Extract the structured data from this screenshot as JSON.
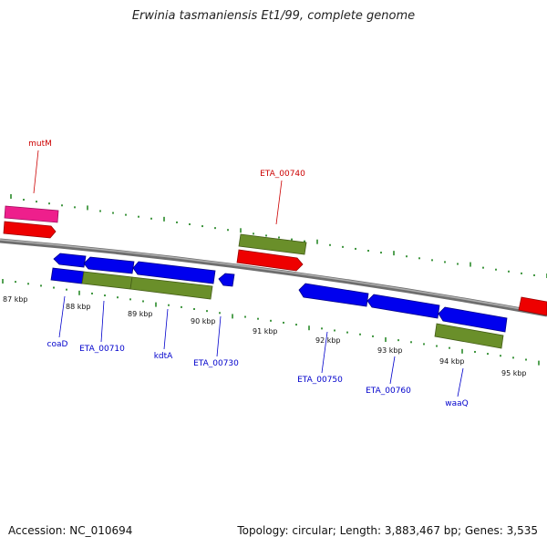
{
  "title": "Erwinia tasmaniensis Et1/99, complete genome",
  "accession_text": "Accession: NC_010694",
  "summary_text": "Topology: circular; Length: 3,883,467 bp; Genes: 3,535",
  "colors": {
    "backbone": "#8a8a8a",
    "tick": "#2a8a2a",
    "forward_label": "#cc0000",
    "reverse_label": "#0000cc",
    "cds": "#0000ee",
    "gene": "#ee0000",
    "other_forward": "#ee1f8c",
    "other_reverse": "#6a8f2a"
  },
  "scale_labels": [
    "87 kbp",
    "88 kbp",
    "89 kbp",
    "90 kbp",
    "91 kbp",
    "92 kbp",
    "93 kbp",
    "94 kbp",
    "95 kbp"
  ],
  "forward_genes": [
    {
      "name": "mutM"
    },
    {
      "name": "ETA_00740"
    }
  ],
  "reverse_genes": [
    {
      "name": "coaD"
    },
    {
      "name": "ETA_00710"
    },
    {
      "name": "kdtA"
    },
    {
      "name": "ETA_00730"
    },
    {
      "name": "ETA_00750"
    },
    {
      "name": "ETA_00760"
    },
    {
      "name": "waaQ"
    }
  ]
}
